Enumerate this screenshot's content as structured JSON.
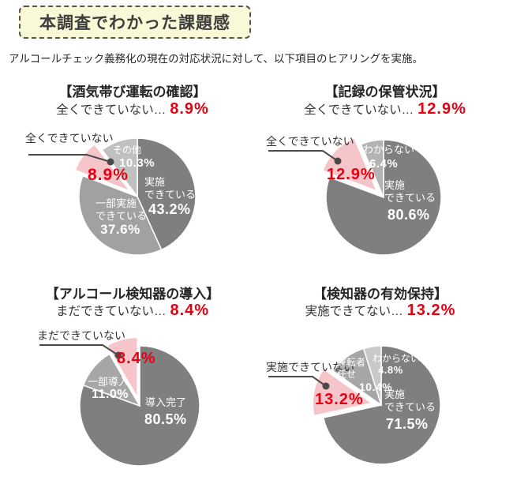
{
  "header": {
    "title": "本調査でわかった課題感",
    "subtitle": "アルコールチェック義務化の現在の対応状況に対して、以下項目のヒアリングを実施。"
  },
  "colors": {
    "accent_red": "#e60012",
    "pink": "#f6c5c9",
    "dark_gray": "#7f7f7f",
    "medium_gray": "#a4a4a4",
    "light_gray": "#bfbfbf",
    "title_box_bg": "#f9f8d7",
    "title_box_border": "#55554a",
    "callout_line": "#4a4a4a"
  },
  "chart_data": [
    {
      "type": "pie",
      "title": "【酒気帯び運転の確認】",
      "headline_label": "全くできていない…",
      "headline_value": "8.9%",
      "callout_label": "全くできていない",
      "legend_position": "inside",
      "slices": [
        {
          "label": "実施できている",
          "label_lines": [
            "実施",
            "できている"
          ],
          "value": 43.2,
          "display": "43.2%",
          "color": "#7f7f7f"
        },
        {
          "label": "一部実施できている",
          "label_lines": [
            "一部実施",
            "できている"
          ],
          "value": 37.6,
          "display": "37.6%",
          "color": "#a1a1a1"
        },
        {
          "label": "全くできていない",
          "label_lines": [],
          "value": 8.9,
          "display": "8.9%",
          "color": "#f6c5c9",
          "exploded": true,
          "highlight": true
        },
        {
          "label": "その他",
          "label_lines": [
            "その他"
          ],
          "value": 10.3,
          "display": "10.3%",
          "color": "#c0c0c0"
        }
      ]
    },
    {
      "type": "pie",
      "title": "【記録の保管状況】",
      "headline_label": "全くできていない…",
      "headline_value": "12.9%",
      "callout_label": "全くできていない",
      "legend_position": "inside",
      "slices": [
        {
          "label": "実施できている",
          "label_lines": [
            "実施",
            "できている"
          ],
          "value": 80.6,
          "display": "80.6%",
          "color": "#7f7f7f"
        },
        {
          "label": "全くできていない",
          "label_lines": [],
          "value": 12.9,
          "display": "12.9%",
          "color": "#f6c5c9",
          "exploded": true,
          "highlight": true
        },
        {
          "label": "わからない",
          "label_lines": [
            "わからない"
          ],
          "value": 6.4,
          "display": "6.4%",
          "color": "#b3b3b3"
        }
      ]
    },
    {
      "type": "pie",
      "title": "【アルコール検知器の導入】",
      "headline_label": "まだできていない…",
      "headline_value": "8.4%",
      "callout_label": "まだできていない",
      "legend_position": "inside",
      "slices": [
        {
          "label": "導入完了",
          "label_lines": [
            "導入完了"
          ],
          "value": 80.5,
          "display": "80.5%",
          "color": "#7f7f7f"
        },
        {
          "label": "一部導入",
          "label_lines": [
            "一部導入"
          ],
          "value": 11.0,
          "display": "11.0%",
          "color": "#a6a6a6"
        },
        {
          "label": "まだできていない",
          "label_lines": [],
          "value": 8.4,
          "display": "8.4%",
          "color": "#f6c5c9",
          "exploded": true,
          "highlight": true
        }
      ]
    },
    {
      "type": "pie",
      "title": "【検知器の有効保持】",
      "headline_label": "実施できてない…",
      "headline_value": "13.2%",
      "callout_label": "実施できていない",
      "legend_position": "inside",
      "slices": [
        {
          "label": "実施できている",
          "label_lines": [
            "実施",
            "できている"
          ],
          "value": 71.5,
          "display": "71.5%",
          "color": "#7f7f7f"
        },
        {
          "label": "実施できていない",
          "label_lines": [],
          "value": 13.2,
          "display": "13.2%",
          "color": "#f6c5c9",
          "exploded": true,
          "highlight": true
        },
        {
          "label": "運転者任せ",
          "label_lines": [
            "運転者",
            "任せ"
          ],
          "value": 10.4,
          "display": "10.4%",
          "color": "#a6a6a6"
        },
        {
          "label": "わからない",
          "label_lines": [
            "わからない"
          ],
          "value": 4.8,
          "display": "4.8%",
          "color": "#c9c9c9"
        }
      ]
    }
  ]
}
